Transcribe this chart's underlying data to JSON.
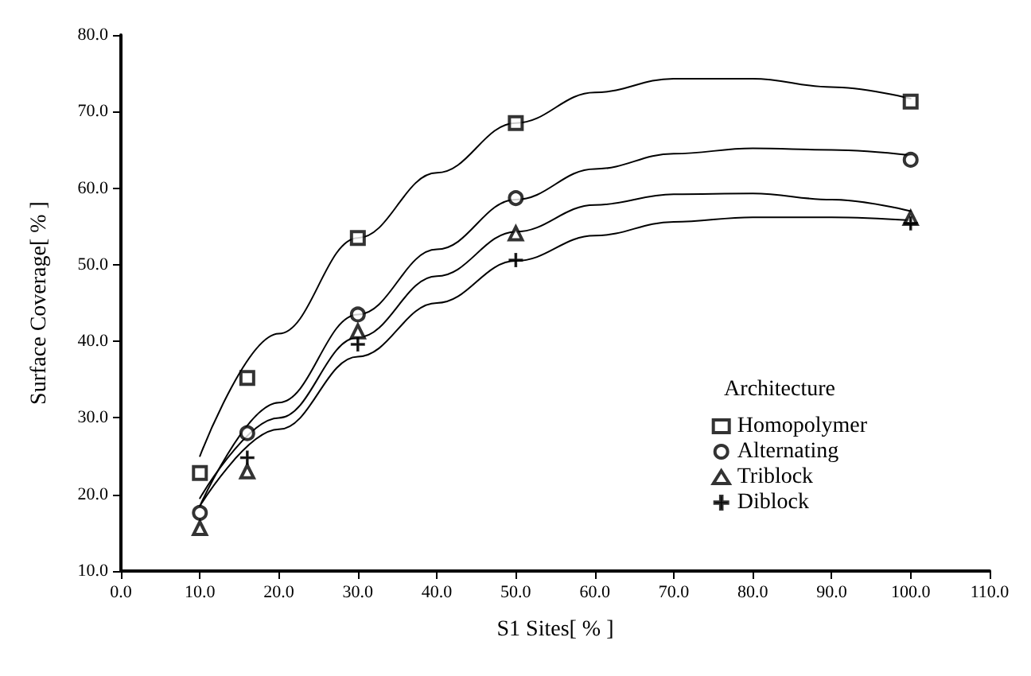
{
  "chart_data": {
    "type": "scatter",
    "xlabel": "S1 Sites[ % ]",
    "ylabel": "Surface Coverage[ % ]",
    "legend_title": "Architecture",
    "legend": "right",
    "grid": false,
    "x": [
      10,
      16,
      30,
      50,
      100
    ],
    "xlim": [
      0,
      110
    ],
    "xticks": [
      {
        "value": 0,
        "label": "0.0"
      },
      {
        "value": 10,
        "label": "10.0"
      },
      {
        "value": 20,
        "label": "20.0"
      },
      {
        "value": 30,
        "label": "30.0"
      },
      {
        "value": 40,
        "label": "40.0"
      },
      {
        "value": 50,
        "label": "50.0"
      },
      {
        "value": 60,
        "label": "60.0"
      },
      {
        "value": 70,
        "label": "70.0"
      },
      {
        "value": 80,
        "label": "80.0"
      },
      {
        "value": 90,
        "label": "90.0"
      },
      {
        "value": 100,
        "label": "100.0"
      },
      {
        "value": 110,
        "label": "110.0"
      }
    ],
    "ylim": [
      10,
      80
    ],
    "yticks": [
      {
        "value": 10,
        "label": "10.0"
      },
      {
        "value": 20,
        "label": "20.0"
      },
      {
        "value": 30,
        "label": "30.0"
      },
      {
        "value": 40,
        "label": "40.0"
      },
      {
        "value": 50,
        "label": "50.0"
      },
      {
        "value": 60,
        "label": "60.0"
      },
      {
        "value": 70,
        "label": "70.0"
      },
      {
        "value": 80,
        "label": "80.0"
      }
    ],
    "series": [
      {
        "name": "Homopolymer",
        "color": "#000000",
        "marker": "square",
        "values": [
          22.8,
          35.2,
          53.5,
          68.5,
          71.3
        ]
      },
      {
        "name": "Alternating",
        "color": "#000000",
        "marker": "circle",
        "values": [
          17.6,
          28,
          43.5,
          58.7,
          63.7
        ]
      },
      {
        "name": "Triblock",
        "color": "#000000",
        "marker": "triangle",
        "values": [
          15.6,
          23,
          41.3,
          54.1,
          56.1
        ]
      },
      {
        "name": "Diblock",
        "color": "#000000",
        "marker": "cross",
        "values": [
          null,
          24.8,
          39.6,
          50.6,
          55.4
        ]
      },
      {
        "type": "line",
        "color": "#000000",
        "marker": "none",
        "line_style": "solid",
        "x": [
          10,
          20,
          30,
          40,
          50,
          60,
          70,
          80,
          90,
          100
        ],
        "values": [
          25,
          41,
          53.5,
          62,
          68.5,
          72.5,
          74.3,
          74.3,
          73.2,
          71.7
        ]
      },
      {
        "type": "line",
        "color": "#000000",
        "marker": "none",
        "line_style": "solid",
        "x": [
          10,
          20,
          30,
          40,
          50,
          60,
          70,
          80,
          90,
          100
        ],
        "values": [
          18.5,
          32,
          43.5,
          52,
          58.5,
          62.5,
          64.5,
          65.2,
          65,
          64.3
        ]
      },
      {
        "type": "line",
        "color": "#000000",
        "marker": "none",
        "line_style": "solid",
        "x": [
          10,
          20,
          30,
          40,
          50,
          60,
          70,
          80,
          90,
          100
        ],
        "values": [
          19.5,
          30,
          40.5,
          48.5,
          54.3,
          57.8,
          59.2,
          59.3,
          58.5,
          57
        ]
      },
      {
        "type": "line",
        "color": "#000000",
        "marker": "none",
        "line_style": "solid",
        "x": [
          10,
          20,
          30,
          40,
          50,
          60,
          70,
          80,
          90,
          100
        ],
        "values": [
          18.5,
          28.5,
          38,
          45,
          50.5,
          53.8,
          55.6,
          56.2,
          56.2,
          55.8
        ]
      }
    ]
  }
}
